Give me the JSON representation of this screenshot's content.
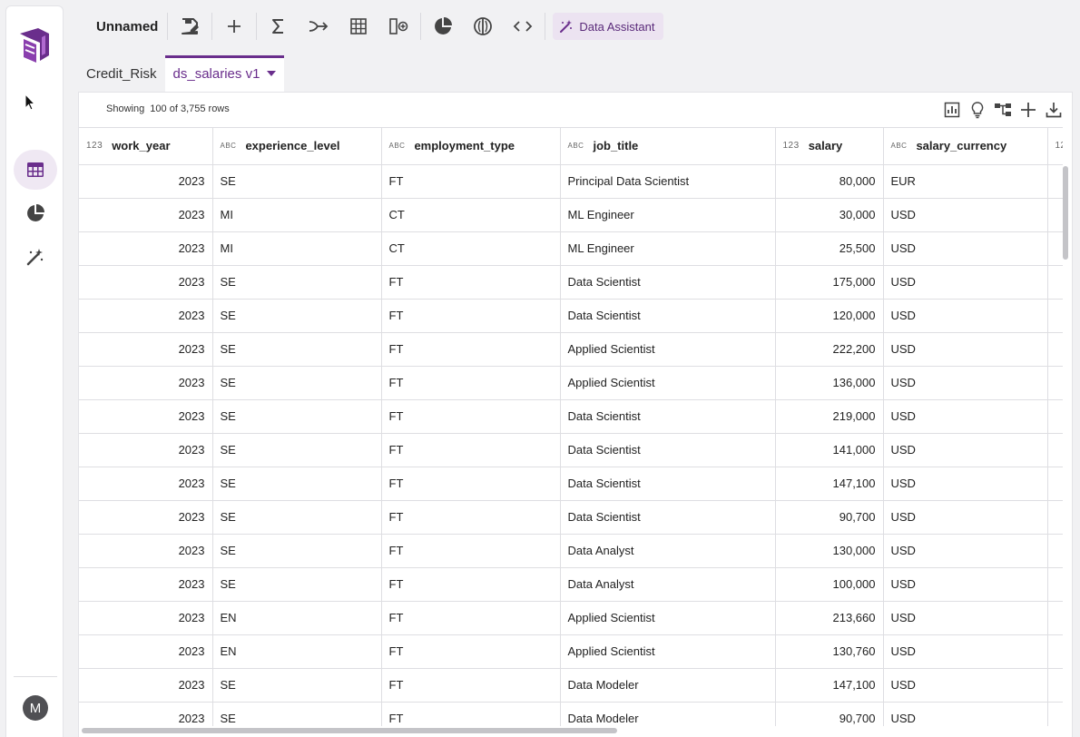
{
  "toolbar": {
    "doc_title": "Unnamed",
    "assistant_label": "Data Assistant"
  },
  "sidebar": {
    "avatar_initial": "M"
  },
  "tabs": [
    {
      "label": "Credit_Risk"
    },
    {
      "label": "ds_salaries v1"
    }
  ],
  "grid": {
    "row_count_text": "Showing  100 of 3,755 rows",
    "type_labels": {
      "num": "123",
      "text": "ABC"
    },
    "columns": [
      {
        "name": "work_year",
        "type": "num"
      },
      {
        "name": "experience_level",
        "type": "text"
      },
      {
        "name": "employment_type",
        "type": "text"
      },
      {
        "name": "job_title",
        "type": "text"
      },
      {
        "name": "salary",
        "type": "num"
      },
      {
        "name": "salary_currency",
        "type": "text"
      },
      {
        "name": "",
        "type": "num"
      }
    ],
    "rows": [
      [
        "2023",
        "SE",
        "FT",
        "Principal Data Scientist",
        "80,000",
        "EUR"
      ],
      [
        "2023",
        "MI",
        "CT",
        "ML Engineer",
        "30,000",
        "USD"
      ],
      [
        "2023",
        "MI",
        "CT",
        "ML Engineer",
        "25,500",
        "USD"
      ],
      [
        "2023",
        "SE",
        "FT",
        "Data Scientist",
        "175,000",
        "USD"
      ],
      [
        "2023",
        "SE",
        "FT",
        "Data Scientist",
        "120,000",
        "USD"
      ],
      [
        "2023",
        "SE",
        "FT",
        "Applied Scientist",
        "222,200",
        "USD"
      ],
      [
        "2023",
        "SE",
        "FT",
        "Applied Scientist",
        "136,000",
        "USD"
      ],
      [
        "2023",
        "SE",
        "FT",
        "Data Scientist",
        "219,000",
        "USD"
      ],
      [
        "2023",
        "SE",
        "FT",
        "Data Scientist",
        "141,000",
        "USD"
      ],
      [
        "2023",
        "SE",
        "FT",
        "Data Scientist",
        "147,100",
        "USD"
      ],
      [
        "2023",
        "SE",
        "FT",
        "Data Scientist",
        "90,700",
        "USD"
      ],
      [
        "2023",
        "SE",
        "FT",
        "Data Analyst",
        "130,000",
        "USD"
      ],
      [
        "2023",
        "SE",
        "FT",
        "Data Analyst",
        "100,000",
        "USD"
      ],
      [
        "2023",
        "EN",
        "FT",
        "Applied Scientist",
        "213,660",
        "USD"
      ],
      [
        "2023",
        "EN",
        "FT",
        "Applied Scientist",
        "130,760",
        "USD"
      ],
      [
        "2023",
        "SE",
        "FT",
        "Data Modeler",
        "147,100",
        "USD"
      ],
      [
        "2023",
        "SE",
        "FT",
        "Data Modeler",
        "90,700",
        "USD"
      ]
    ]
  },
  "colors": {
    "accent": "#6a2e8c",
    "accent_bg": "#ece3f1"
  }
}
